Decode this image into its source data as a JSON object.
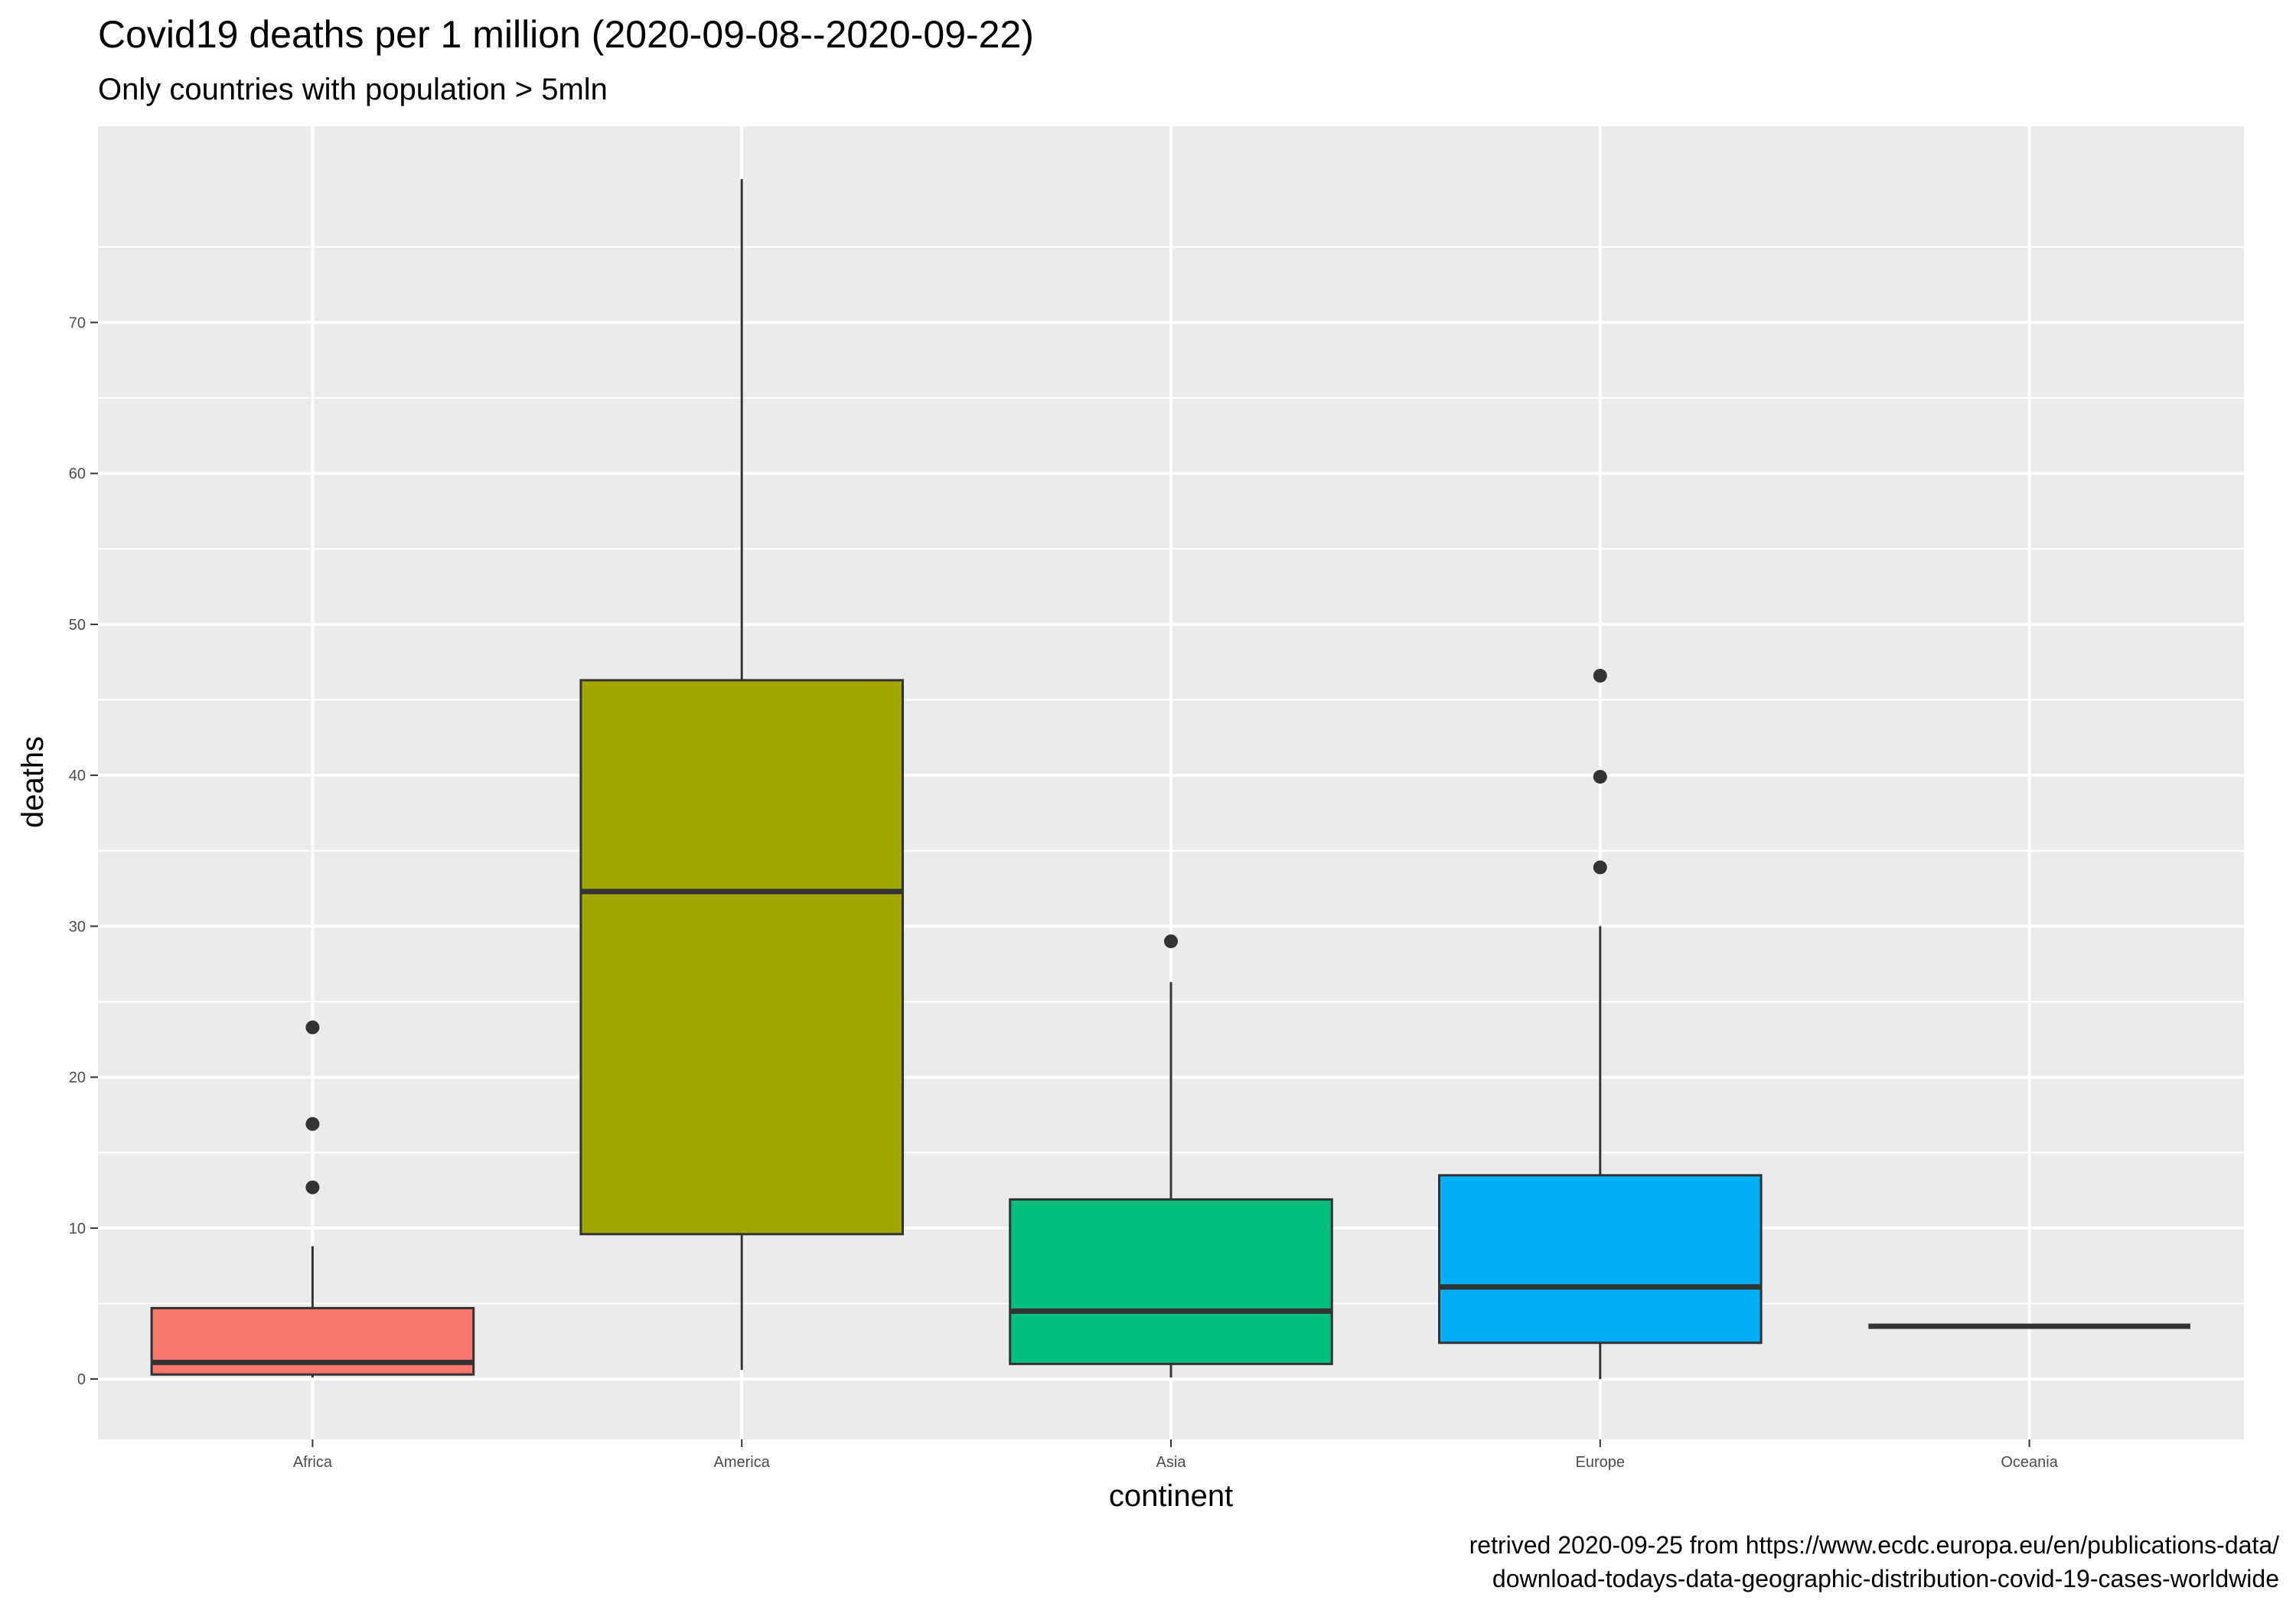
{
  "chart_data": {
    "type": "box",
    "title": "Covid19 deaths per 1 million (2020-09-08--2020-09-22)",
    "subtitle": "Only countries with population > 5mln",
    "xlabel": "continent",
    "ylabel": "deaths",
    "caption_lines": [
      "retrived 2020-09-25 from https://www.ecdc.europa.eu/en/publications-data/",
      "download-todays-data-geographic-distribution-covid-19-cases-worldwide"
    ],
    "categories": [
      "Africa",
      "America",
      "Asia",
      "Europe",
      "Oceania"
    ],
    "ylim": [
      -4,
      83
    ],
    "yticks": [
      0,
      10,
      20,
      30,
      40,
      50,
      60,
      70
    ],
    "grid": true,
    "legend": "none",
    "panel_background": "#ebebeb",
    "series": [
      {
        "category": "Africa",
        "color": "#f8766d",
        "min": 0.1,
        "q1": 0.3,
        "median": 1.1,
        "q3": 4.7,
        "max": 8.8,
        "outliers": [
          12.7,
          16.9,
          23.3
        ]
      },
      {
        "category": "America",
        "color": "#a3a500",
        "min": 0.6,
        "q1": 9.6,
        "median": 32.3,
        "q3": 46.3,
        "max": 79.5,
        "outliers": []
      },
      {
        "category": "Asia",
        "color": "#00bf7d",
        "min": 0.1,
        "q1": 1.0,
        "median": 4.5,
        "q3": 11.9,
        "max": 26.3,
        "outliers": [
          29.0
        ]
      },
      {
        "category": "Europe",
        "color": "#00b0f6",
        "min": 0.0,
        "q1": 2.4,
        "median": 6.1,
        "q3": 13.5,
        "max": 30.0,
        "outliers": [
          33.9,
          39.9,
          46.6
        ]
      },
      {
        "category": "Oceania",
        "color": "#e76bf3",
        "min": 3.5,
        "q1": 3.5,
        "median": 3.5,
        "q3": 3.5,
        "max": 3.5,
        "outliers": []
      }
    ]
  }
}
